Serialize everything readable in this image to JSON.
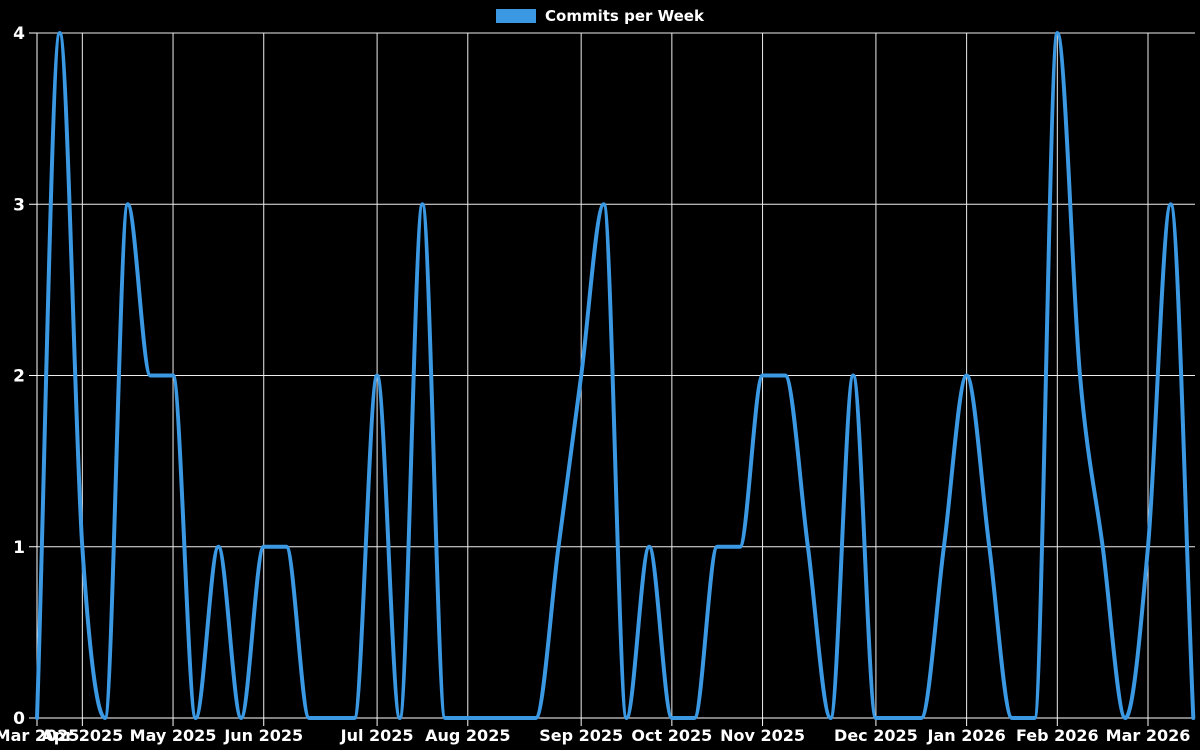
{
  "legend": {
    "label": "Commits per Week"
  },
  "colors": {
    "background": "#000000",
    "line": "#3b98e2",
    "grid": "#ededed",
    "axis": "#ffffff",
    "text": "#ffffff"
  },
  "chart_data": {
    "type": "line",
    "title": "",
    "xlabel": "",
    "ylabel": "",
    "curve": "monotone",
    "grid": true,
    "legend_position": "top",
    "point_markers": false,
    "ylim": [
      0,
      4
    ],
    "y_tick_labels": [
      "0",
      "1",
      "2",
      "3",
      "4"
    ],
    "x_unit": "week",
    "weeks_total": 52,
    "series": [
      {
        "name": "Commits per Week",
        "color": "#3b98e2",
        "values": [
          0,
          4,
          1,
          0,
          3,
          2,
          2,
          0,
          1,
          0,
          1,
          1,
          0,
          0,
          0,
          2,
          0,
          3,
          0,
          0,
          0,
          0,
          0,
          1,
          2,
          3,
          0,
          1,
          0,
          0,
          1,
          1,
          2,
          2,
          1,
          0,
          2,
          0,
          0,
          0,
          1,
          2,
          1,
          0,
          0,
          4,
          2,
          1,
          0,
          1,
          3,
          0
        ]
      }
    ],
    "x_month_ticks": [
      {
        "label": "Mar 2025",
        "week_index": 0
      },
      {
        "label": "Apr 2025",
        "week_index": 2
      },
      {
        "label": "May 2025",
        "week_index": 6
      },
      {
        "label": "Jun 2025",
        "week_index": 10
      },
      {
        "label": "Jul 2025",
        "week_index": 15
      },
      {
        "label": "Aug 2025",
        "week_index": 19
      },
      {
        "label": "Sep 2025",
        "week_index": 24
      },
      {
        "label": "Oct 2025",
        "week_index": 28
      },
      {
        "label": "Nov 2025",
        "week_index": 32
      },
      {
        "label": "Dec 2025",
        "week_index": 37
      },
      {
        "label": "Jan 2026",
        "week_index": 41
      },
      {
        "label": "Feb 2026",
        "week_index": 45
      },
      {
        "label": "Mar 2026",
        "week_index": 49
      }
    ]
  }
}
